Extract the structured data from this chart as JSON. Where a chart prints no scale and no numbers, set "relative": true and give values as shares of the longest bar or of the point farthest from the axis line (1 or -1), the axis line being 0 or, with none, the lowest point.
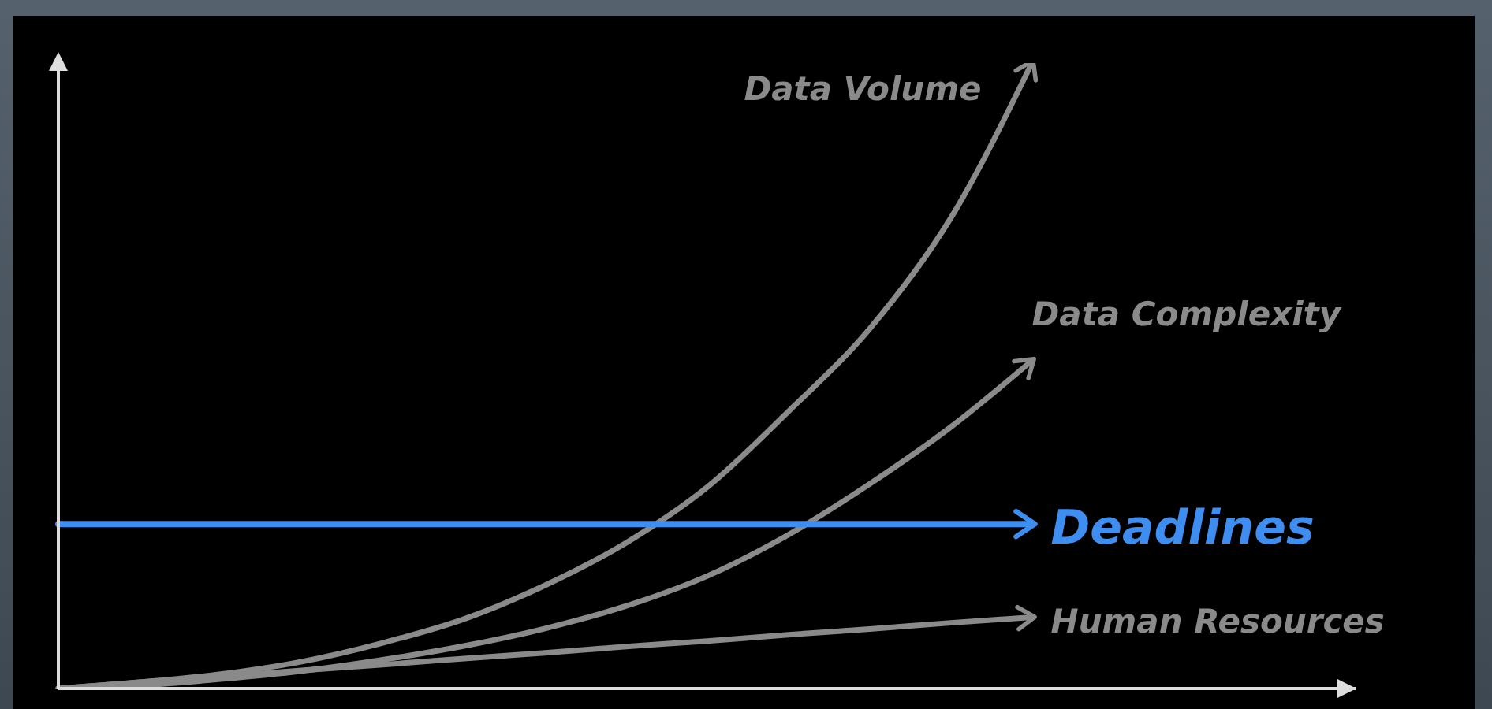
{
  "chart_data": {
    "type": "line",
    "relative": true,
    "categories": [
      null,
      null,
      null,
      null,
      null,
      null,
      null,
      null,
      null,
      null,
      null,
      null,
      null,
      null,
      null,
      null,
      null
    ],
    "legend": false,
    "grid": false,
    "marker": "none",
    "line_style": "solid",
    "series": [
      {
        "name": "Data Volume",
        "color": "#8a8a8a",
        "values": [
          0,
          0.01,
          0.023,
          0.043,
          0.073,
          0.111,
          0.165,
          0.233,
          0.322,
          0.443,
          0.575,
          0.752,
          1,
          null,
          null,
          null,
          null
        ]
      },
      {
        "name": "Data Complexity",
        "color": "#8a8a8a",
        "values": [
          0,
          0.005,
          0.015,
          0.028,
          0.046,
          0.068,
          0.096,
          0.132,
          0.18,
          0.246,
          0.327,
          0.418,
          0.524,
          null,
          null,
          null,
          null
        ]
      },
      {
        "name": "Deadlines",
        "color": "#3d8ef0",
        "values": [
          0.263,
          0.263,
          0.263,
          0.263,
          0.263,
          0.263,
          0.263,
          0.263,
          0.263,
          0.263,
          0.263,
          0.263,
          0.263,
          null,
          null,
          null,
          null
        ]
      },
      {
        "name": "Human Resources",
        "color": "#8a8a8a",
        "values": [
          0,
          0.01,
          0.019,
          0.029,
          0.038,
          0.048,
          0.057,
          0.067,
          0.076,
          0.086,
          0.095,
          0.105,
          0.114,
          null,
          null,
          null,
          null
        ]
      }
    ]
  }
}
